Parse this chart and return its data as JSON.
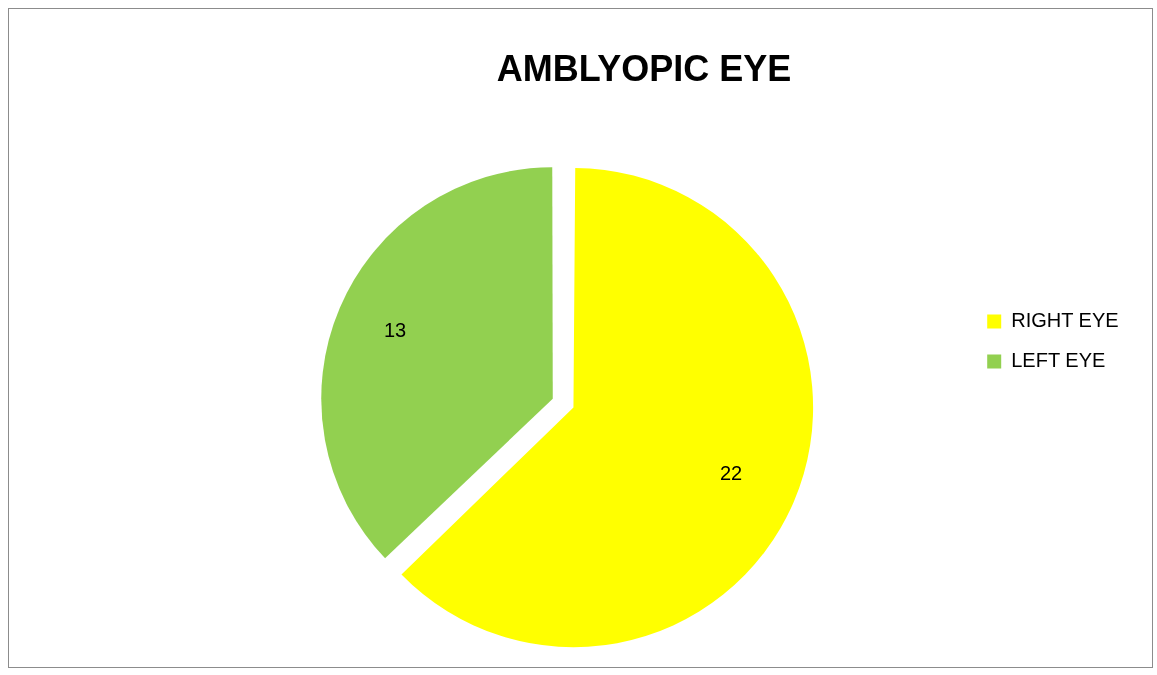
{
  "chart_data": {
    "type": "pie",
    "title": "AMBLYOPIC EYE",
    "categories": [
      "RIGHT EYE",
      "LEFT EYE"
    ],
    "values": [
      22,
      13
    ],
    "colors": [
      "#ffff00",
      "#92d050"
    ],
    "data_labels": true,
    "legend": "right"
  }
}
